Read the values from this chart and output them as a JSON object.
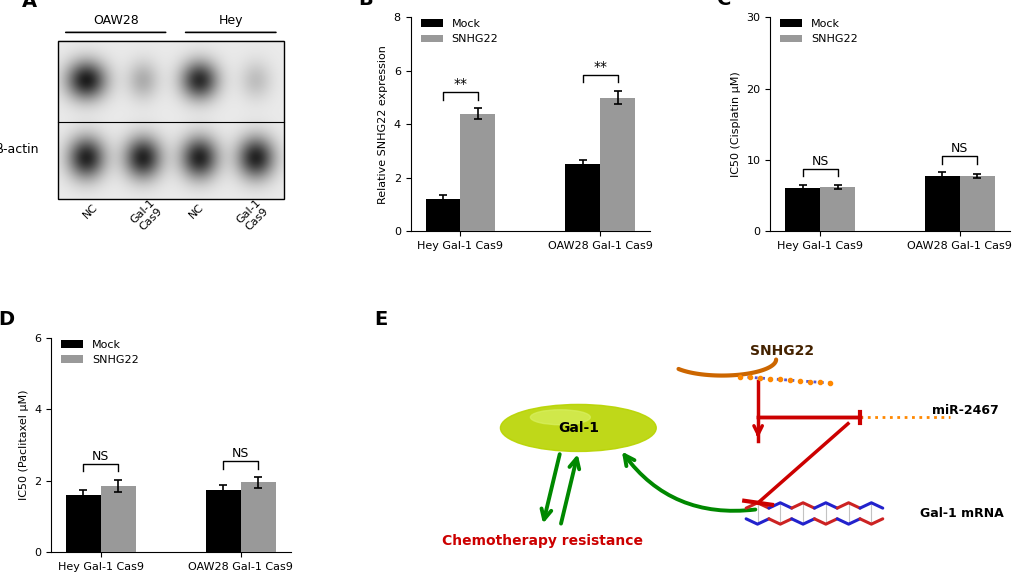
{
  "panel_B": {
    "groups": [
      "Hey Gal-1 Cas9",
      "OAW28 Gal-1 Cas9"
    ],
    "mock_values": [
      1.2,
      2.5
    ],
    "mock_errors": [
      0.15,
      0.15
    ],
    "snhg22_values": [
      4.4,
      5.0
    ],
    "snhg22_errors": [
      0.2,
      0.25
    ],
    "ylabel": "Relative SNHG22 expression",
    "ylim": [
      0,
      8
    ],
    "yticks": [
      0,
      2,
      4,
      6,
      8
    ],
    "sig_labels": [
      "**",
      "**"
    ],
    "title": "B"
  },
  "panel_C": {
    "groups": [
      "Hey Gal-1 Cas9",
      "OAW28 Gal-1 Cas9"
    ],
    "mock_values": [
      6.0,
      7.8
    ],
    "mock_errors": [
      0.5,
      0.5
    ],
    "snhg22_values": [
      6.2,
      7.8
    ],
    "snhg22_errors": [
      0.3,
      0.3
    ],
    "ylabel": "IC50 (Cisplatin μM)",
    "ylim": [
      0,
      30
    ],
    "yticks": [
      0,
      10,
      20,
      30
    ],
    "sig_labels": [
      "NS",
      "NS"
    ],
    "title": "C"
  },
  "panel_D": {
    "groups": [
      "Hey Gal-1 Cas9",
      "OAW28 Gal-1 Cas9"
    ],
    "mock_values": [
      1.6,
      1.75
    ],
    "mock_errors": [
      0.13,
      0.13
    ],
    "snhg22_values": [
      1.85,
      1.95
    ],
    "snhg22_errors": [
      0.18,
      0.15
    ],
    "ylabel": "IC50 (Paclitaxel μM)",
    "ylim": [
      0,
      6
    ],
    "yticks": [
      0,
      2,
      4,
      6
    ],
    "sig_labels": [
      "NS",
      "NS"
    ],
    "title": "D"
  },
  "legend_mock_color": "#000000",
  "legend_snhg22_color": "#999999",
  "bar_width": 0.35,
  "panel_E_bg": "#cde8a0",
  "background_color": "#ffffff",
  "panel_A_title": "A",
  "panel_E_title": "E"
}
